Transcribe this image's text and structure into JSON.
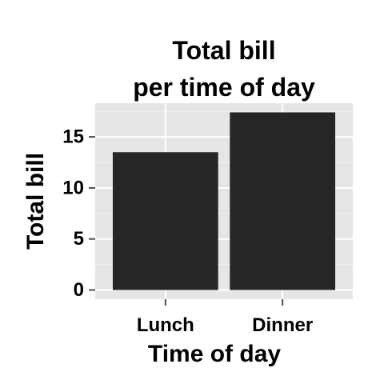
{
  "chart_data": {
    "type": "bar",
    "title": "Total bill\nper time of day",
    "xlabel": "Time of day",
    "ylabel": "Total bill",
    "categories": [
      "Lunch",
      "Dinner"
    ],
    "values": [
      13.5,
      17.4
    ],
    "ylim": [
      -0.9,
      18.3
    ],
    "yticks": [
      0,
      5,
      10,
      15
    ],
    "ytick_labels": [
      "0",
      "5",
      "10",
      "15"
    ],
    "grid": true,
    "legend": "none",
    "colors": {
      "bar": "#262626",
      "panel": "#e5e5e5",
      "grid_major": "#ffffff",
      "grid_minor": "#f2f2f2",
      "text": "#000000",
      "tick": "#4d4d4d"
    }
  }
}
